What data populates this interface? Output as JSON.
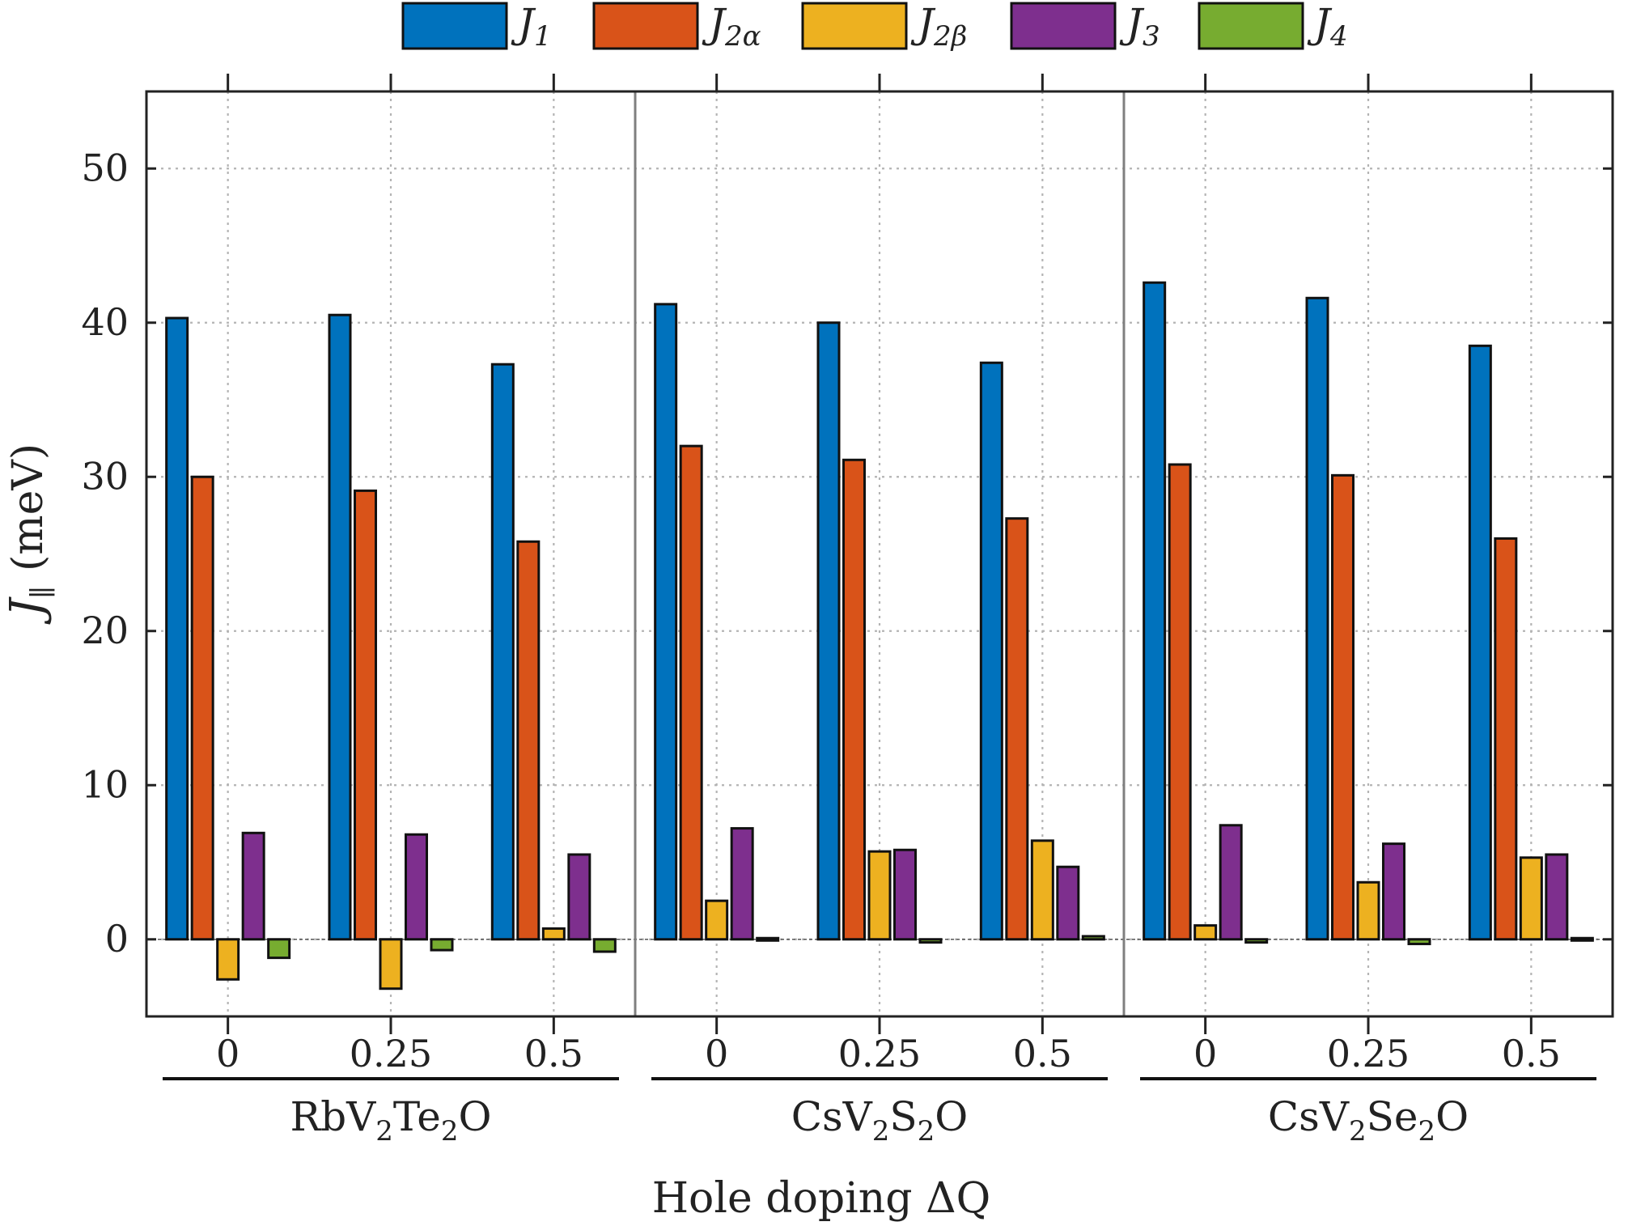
{
  "chart_data": {
    "type": "bar",
    "ylabel": "J",
    "ylabel_subscript": "∥",
    "ylabel_unit": "(meV)",
    "xlabel": "Hole doping ΔQ",
    "ylim": [
      -5,
      55
    ],
    "yticks": [
      0,
      10,
      20,
      30,
      40,
      50
    ],
    "grid": true,
    "legend_position": "top-center",
    "series": [
      {
        "name": "J",
        "sub": "1",
        "color": "#0072BD"
      },
      {
        "name": "J",
        "sub": "2α",
        "color": "#D95319"
      },
      {
        "name": "J",
        "sub": "2β",
        "color": "#EDB120"
      },
      {
        "name": "J",
        "sub": "3",
        "color": "#7E2F8E"
      },
      {
        "name": "J",
        "sub": "4",
        "color": "#77AC30"
      }
    ],
    "groups": [
      {
        "label": "RbV",
        "label_sub1": "2",
        "label_mid": "Te",
        "label_sub2": "2",
        "label_end": "O",
        "categories": [
          {
            "label": "0",
            "values": [
              40.3,
              30.0,
              -2.6,
              6.9,
              -1.2
            ]
          },
          {
            "label": "0.25",
            "values": [
              40.5,
              29.1,
              -3.2,
              6.8,
              -0.7
            ]
          },
          {
            "label": "0.5",
            "values": [
              37.3,
              25.8,
              0.7,
              5.5,
              -0.8
            ]
          }
        ]
      },
      {
        "label": "CsV",
        "label_sub1": "2",
        "label_mid": "S",
        "label_sub2": "2",
        "label_end": "O",
        "categories": [
          {
            "label": "0",
            "values": [
              41.2,
              32.0,
              2.5,
              7.2,
              0.1
            ]
          },
          {
            "label": "0.25",
            "values": [
              40.0,
              31.1,
              5.7,
              5.8,
              -0.2
            ]
          },
          {
            "label": "0.5",
            "values": [
              37.4,
              27.3,
              6.4,
              4.7,
              0.2
            ]
          }
        ]
      },
      {
        "label": "CsV",
        "label_sub1": "2",
        "label_mid": "Se",
        "label_sub2": "2",
        "label_end": "O",
        "categories": [
          {
            "label": "0",
            "values": [
              42.6,
              30.8,
              0.9,
              7.4,
              -0.2
            ]
          },
          {
            "label": "0.25",
            "values": [
              41.6,
              30.1,
              3.7,
              6.2,
              -0.3
            ]
          },
          {
            "label": "0.5",
            "values": [
              38.5,
              26.0,
              5.3,
              5.5,
              0.05
            ]
          }
        ]
      }
    ]
  }
}
